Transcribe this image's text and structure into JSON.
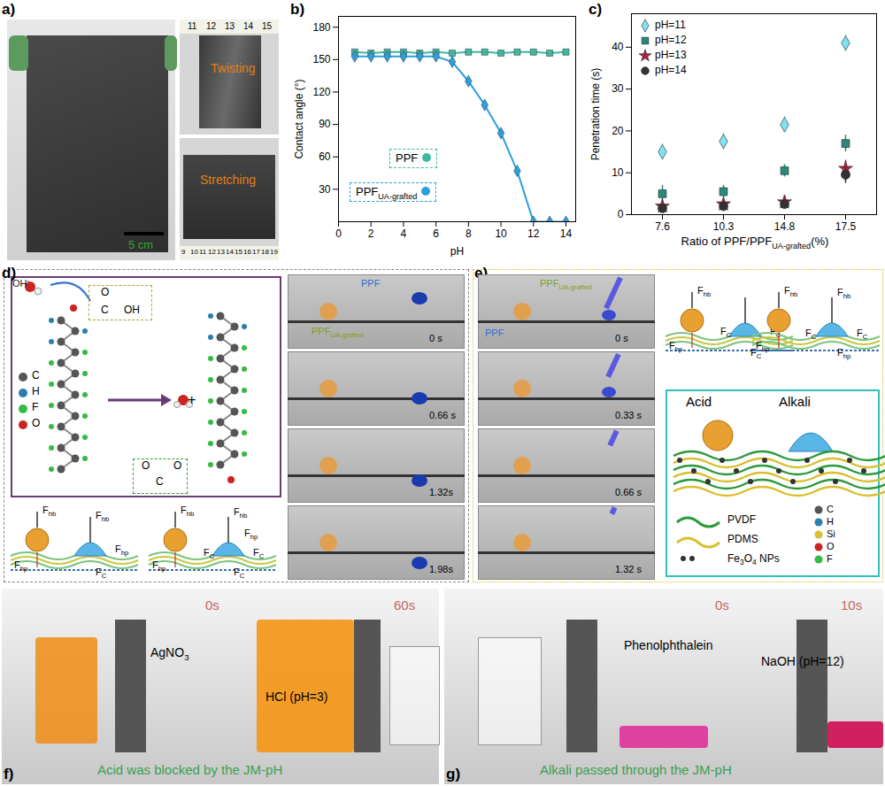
{
  "chart_data": [
    {
      "type": "line",
      "title": "b)",
      "x_label": "pH",
      "y_label": "Contact angle (°)",
      "xlim": [
        0,
        14.6
      ],
      "xticks": [
        0,
        2,
        4,
        6,
        8,
        10,
        12,
        14
      ],
      "ylim": [
        0,
        190
      ],
      "yticks": [
        30,
        60,
        90,
        120,
        150,
        180
      ],
      "x": [
        1,
        2,
        3,
        4,
        5,
        6,
        7,
        8,
        9,
        10,
        11,
        12,
        13,
        14
      ],
      "series": [
        {
          "name": "PPF",
          "color": "#3fb8a0",
          "marker": "square",
          "values": [
            157,
            156,
            157,
            157,
            156,
            157,
            156,
            157,
            157,
            156,
            157,
            157,
            156,
            157
          ]
        },
        {
          "name": [
            "PPF",
            {
              "sub": "UA-grafted"
            }
          ],
          "color": "#2b9fe0",
          "marker": "diamond",
          "values": [
            153,
            153,
            153,
            153,
            153,
            153,
            148,
            130,
            108,
            82,
            47,
            0,
            0,
            0
          ]
        }
      ]
    },
    {
      "type": "scatter",
      "title": "c)",
      "x_label": [
        "Ratio of PPF/PPF",
        {
          "sub": "UA-grafted"
        },
        "(%)"
      ],
      "y_label": "Penetration time (s)",
      "categories": [
        "7.6",
        "10.3",
        "14.8",
        "17.5"
      ],
      "ylim": [
        0,
        48
      ],
      "yticks": [
        0,
        10,
        20,
        30,
        40
      ],
      "legend": "top-left",
      "series": [
        {
          "name": "pH=11",
          "color": "#7fe3f0",
          "marker": "diamond",
          "values": [
            15,
            17.5,
            21.5,
            41
          ],
          "errors": [
            2,
            2,
            2,
            2
          ]
        },
        {
          "name": "pH=12",
          "color": "#2a8a7a",
          "marker": "square",
          "values": [
            5,
            5.5,
            10.5,
            17
          ],
          "errors": [
            2,
            1.5,
            1.5,
            2
          ]
        },
        {
          "name": "pH=13",
          "color": "#b0203a",
          "marker": "star",
          "values": [
            2,
            2.5,
            3,
            11
          ],
          "errors": [
            1,
            1,
            1.5,
            2
          ]
        },
        {
          "name": "pH=14",
          "color": "#333333",
          "marker": "circle",
          "values": [
            1.5,
            2,
            2.5,
            9.5
          ],
          "errors": [
            0.8,
            1,
            1,
            2
          ]
        }
      ]
    }
  ],
  "panels": {
    "a": {
      "label": "a)",
      "twisting": "Twisting",
      "stretching": "Stretching",
      "scale_bar": "5 cm",
      "ruler_top": [
        "11",
        "12",
        "13",
        "14",
        "15"
      ],
      "ruler_bottom": [
        "9",
        "10",
        "11",
        "12",
        "13",
        "14",
        "15",
        "16",
        "17",
        "18",
        "19"
      ]
    },
    "d": {
      "label": "d)",
      "ion": [
        "OH",
        {
          "sup": "-"
        }
      ],
      "group_in": [
        "O",
        "C",
        "OH"
      ],
      "group_out": [
        "O",
        "C",
        "O"
      ],
      "plus": "+",
      "atoms": {
        "labels": [
          "C",
          "H",
          "F",
          "O"
        ],
        "colors": [
          "#555555",
          "#2a7fb0",
          "#33bb44",
          "#cc2222"
        ]
      },
      "photo_labels": [
        "PPF",
        [
          "PPF",
          {
            "sub": "UA-grafted"
          }
        ]
      ],
      "times": [
        "0 s",
        "0.66 s",
        "1.32s",
        "1.98s"
      ],
      "diagrams": [
        [
          [
            "F",
            {
              "sub": "hb"
            }
          ],
          [
            "F",
            {
              "sub": "hp"
            }
          ],
          [
            "F",
            {
              "sub": "hb"
            }
          ],
          [
            "F",
            {
              "sub": "hp"
            }
          ],
          [
            "F",
            {
              "sub": "C"
            }
          ]
        ],
        [
          [
            "F",
            {
              "sub": "hb"
            }
          ],
          [
            "F",
            {
              "sub": "hp"
            }
          ],
          [
            "F",
            {
              "sub": "hb"
            }
          ],
          [
            "F",
            {
              "sub": "C"
            }
          ],
          [
            "F",
            {
              "sub": "C"
            }
          ],
          [
            "F",
            {
              "sub": "hp"
            }
          ],
          [
            "F",
            {
              "sub": "C"
            }
          ]
        ]
      ]
    },
    "e": {
      "label": "e)",
      "photo_labels": [
        [
          "PPF",
          {
            "sub": "UA-grafted"
          }
        ],
        "PPF"
      ],
      "times": [
        "0 s",
        "0.33 s",
        "0.66 s",
        "1.32 s"
      ],
      "diagrams": [
        [
          [
            "F",
            {
              "sub": "hb"
            }
          ],
          [
            "F",
            {
              "sub": "hp"
            }
          ],
          [
            "F",
            {
              "sub": "C"
            }
          ],
          [
            "F",
            {
              "sub": "C"
            }
          ],
          [
            "F",
            {
              "sub": "C"
            }
          ]
        ],
        [
          [
            "F",
            {
              "sub": "hb"
            }
          ],
          [
            "F",
            {
              "sub": "hp"
            }
          ],
          [
            "F",
            {
              "sub": "hb"
            }
          ],
          [
            "F",
            {
              "sub": "C"
            }
          ],
          [
            "F",
            {
              "sub": "C"
            }
          ],
          [
            "F",
            {
              "sub": "hp"
            }
          ]
        ]
      ],
      "box": {
        "acid": "Acid",
        "alkali": "Alkali",
        "materials": [
          "PVDF",
          "PDMS",
          [
            "Fe",
            {
              "sub": "3"
            },
            "O",
            {
              "sub": "4"
            },
            " NPs"
          ]
        ],
        "atoms": {
          "labels": [
            "C",
            "H",
            "Si",
            "O",
            "F"
          ],
          "colors": [
            "#555555",
            "#2a7fb0",
            "#d8c030",
            "#cc2222",
            "#33bb44"
          ]
        }
      }
    },
    "f": {
      "label": "f)",
      "times": [
        "0s",
        "60s"
      ],
      "reagent": [
        "AgNO",
        {
          "sub": "3"
        }
      ],
      "liquid": "HCl (pH=3)",
      "caption": "Acid was blocked by the JM-pH"
    },
    "g": {
      "label": "g)",
      "times": [
        "0s",
        "10s"
      ],
      "indicator": "Phenolphthalein",
      "liquid": "NaOH (pH=12)",
      "caption": "Alkali passed through the JM-pH"
    }
  }
}
